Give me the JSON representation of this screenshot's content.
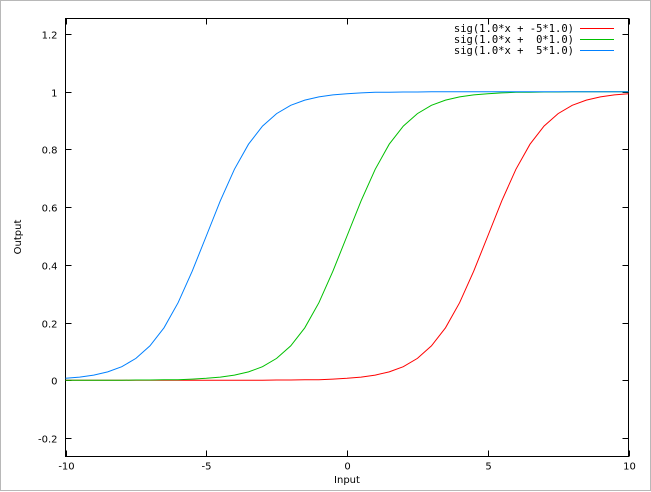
{
  "chart_data": {
    "type": "line",
    "xlabel": "Input",
    "ylabel": "Output",
    "xlim": [
      -10,
      10
    ],
    "ylim": [
      -0.2,
      1.2
    ],
    "xticks": [
      "-10",
      "-5",
      "0",
      "5",
      "10"
    ],
    "xtick_values": [
      -10,
      -5,
      0,
      5,
      10
    ],
    "yticks": [
      "-0.2",
      "0",
      "0.2",
      "0.4",
      "0.6",
      "0.8",
      "1",
      "1.2"
    ],
    "ytick_values": [
      -0.2,
      0,
      0.2,
      0.4,
      0.6,
      0.8,
      1,
      1.2
    ],
    "grid": false,
    "legend_position": "top-right",
    "x": [
      -10,
      -9.5,
      -9,
      -8.5,
      -8,
      -7.5,
      -7,
      -6.5,
      -6,
      -5.5,
      -5,
      -4.5,
      -4,
      -3.5,
      -3,
      -2.5,
      -2,
      -1.5,
      -1,
      -0.5,
      0,
      0.5,
      1,
      1.5,
      2,
      2.5,
      3,
      3.5,
      4,
      4.5,
      5,
      5.5,
      6,
      6.5,
      7,
      7.5,
      8,
      8.5,
      9,
      9.5,
      10
    ],
    "series": [
      {
        "name": "sig(1.0*x + -5*1.0)",
        "color": "#ff0000",
        "values": [
          0,
          0,
          0,
          0,
          0,
          0,
          0,
          0,
          0,
          0,
          0,
          0,
          0,
          0,
          0,
          0.001,
          0.001,
          0.002,
          0.002,
          0.004,
          0.007,
          0.011,
          0.018,
          0.029,
          0.047,
          0.076,
          0.119,
          0.182,
          0.269,
          0.378,
          0.5,
          0.622,
          0.731,
          0.818,
          0.881,
          0.924,
          0.953,
          0.971,
          0.982,
          0.989,
          0.993
        ]
      },
      {
        "name": "sig(1.0*x +  0*1.0)",
        "color": "#00c000",
        "values": [
          0,
          0,
          0,
          0,
          0,
          0.001,
          0.001,
          0.002,
          0.002,
          0.004,
          0.007,
          0.011,
          0.018,
          0.029,
          0.047,
          0.076,
          0.119,
          0.182,
          0.269,
          0.378,
          0.5,
          0.622,
          0.731,
          0.818,
          0.881,
          0.924,
          0.953,
          0.971,
          0.982,
          0.989,
          0.993,
          0.996,
          0.998,
          0.998,
          0.999,
          0.999,
          1,
          1,
          1,
          1,
          1
        ]
      },
      {
        "name": "sig(1.0*x +  5*1.0)",
        "color": "#0080ff",
        "values": [
          0.007,
          0.011,
          0.018,
          0.029,
          0.047,
          0.076,
          0.119,
          0.182,
          0.269,
          0.378,
          0.5,
          0.622,
          0.731,
          0.818,
          0.881,
          0.924,
          0.953,
          0.971,
          0.982,
          0.989,
          0.993,
          0.996,
          0.998,
          0.998,
          0.999,
          0.999,
          1,
          1,
          1,
          1,
          1,
          1,
          1,
          1,
          1,
          1,
          1,
          1,
          1,
          1,
          1
        ]
      }
    ]
  }
}
